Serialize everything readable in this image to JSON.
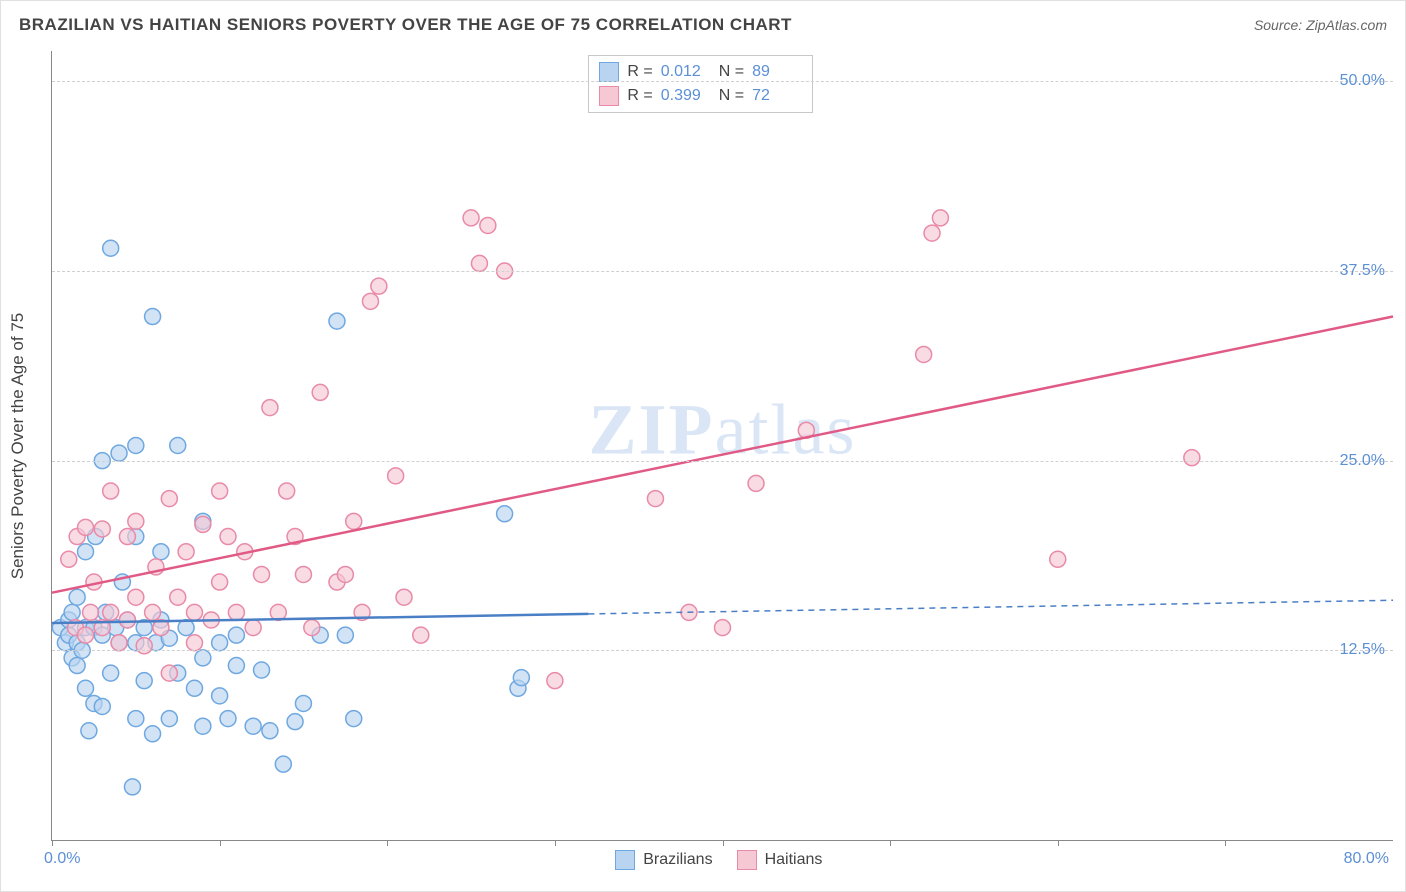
{
  "title": "BRAZILIAN VS HAITIAN SENIORS POVERTY OVER THE AGE OF 75 CORRELATION CHART",
  "source": "Source: ZipAtlas.com",
  "y_axis_label": "Seniors Poverty Over the Age of 75",
  "watermark_zip": "ZIP",
  "watermark_atlas": "atlas",
  "chart": {
    "type": "scatter",
    "xlim": [
      0,
      80
    ],
    "ylim": [
      0,
      52
    ],
    "x_min_label": "0.0%",
    "x_max_label": "80.0%",
    "x_ticks": [
      0,
      10,
      20,
      30,
      40,
      50,
      60,
      70
    ],
    "y_gridlines": [
      12.5,
      25.0,
      37.5,
      50.0
    ],
    "y_tick_labels": [
      "12.5%",
      "25.0%",
      "37.5%",
      "50.0%"
    ],
    "tick_label_color": "#5b8fd6",
    "grid_color": "#d0d0d0",
    "axis_color": "#888888",
    "background_color": "#ffffff",
    "marker_radius": 8,
    "marker_stroke_width": 1.5,
    "trend_line_width": 2.5,
    "label_fontsize": 17,
    "tick_fontsize": 16
  },
  "series": [
    {
      "name": "Brazilians",
      "fill": "#b8d4f0",
      "stroke": "#6fa8e0",
      "trend_color": "#4a7fc5",
      "trend_solid_xmax": 32,
      "R": "0.012",
      "N": "89",
      "trend": {
        "x1": 0,
        "y1": 14.3,
        "x2": 80,
        "y2": 15.8
      },
      "points": [
        [
          0.5,
          14
        ],
        [
          0.8,
          13
        ],
        [
          1,
          14.5
        ],
        [
          1,
          13.5
        ],
        [
          1.2,
          12
        ],
        [
          1.2,
          15
        ],
        [
          1.5,
          13
        ],
        [
          1.5,
          11.5
        ],
        [
          1.5,
          16
        ],
        [
          1.8,
          12.5
        ],
        [
          2,
          14
        ],
        [
          2,
          10
        ],
        [
          2,
          19
        ],
        [
          2.2,
          7.2
        ],
        [
          2.5,
          14
        ],
        [
          2.5,
          9
        ],
        [
          2.6,
          20
        ],
        [
          3,
          13.5
        ],
        [
          3,
          25
        ],
        [
          3,
          8.8
        ],
        [
          3.2,
          15
        ],
        [
          3.5,
          11
        ],
        [
          3.5,
          39
        ],
        [
          3.8,
          14
        ],
        [
          4,
          25.5
        ],
        [
          4,
          13
        ],
        [
          4.2,
          17
        ],
        [
          4.5,
          14.5
        ],
        [
          4.8,
          3.5
        ],
        [
          5,
          20
        ],
        [
          5,
          26
        ],
        [
          5,
          13
        ],
        [
          5,
          8
        ],
        [
          5.5,
          14
        ],
        [
          5.5,
          10.5
        ],
        [
          6,
          34.5
        ],
        [
          6,
          7
        ],
        [
          6.2,
          13
        ],
        [
          6.5,
          14.5
        ],
        [
          6.5,
          19
        ],
        [
          7,
          13.3
        ],
        [
          7,
          8
        ],
        [
          7.5,
          26
        ],
        [
          7.5,
          11
        ],
        [
          8,
          14
        ],
        [
          8.5,
          10
        ],
        [
          9,
          12
        ],
        [
          9,
          21
        ],
        [
          9,
          7.5
        ],
        [
          10,
          13
        ],
        [
          10,
          9.5
        ],
        [
          10.5,
          8
        ],
        [
          11,
          13.5
        ],
        [
          11,
          11.5
        ],
        [
          12,
          7.5
        ],
        [
          12.5,
          11.2
        ],
        [
          13,
          7.2
        ],
        [
          13.8,
          5
        ],
        [
          14.5,
          7.8
        ],
        [
          15,
          9
        ],
        [
          16,
          13.5
        ],
        [
          17,
          34.2
        ],
        [
          17.5,
          13.5
        ],
        [
          18,
          8
        ],
        [
          27,
          21.5
        ],
        [
          27.8,
          10
        ],
        [
          28,
          10.7
        ]
      ]
    },
    {
      "name": "Haitians",
      "fill": "#f5c8d4",
      "stroke": "#e88aa8",
      "trend_color": "#e05a85",
      "trend_solid_xmax": 80,
      "R": "0.399",
      "N": "72",
      "trend": {
        "x1": 0,
        "y1": 16.3,
        "x2": 80,
        "y2": 34.5
      },
      "points": [
        [
          1,
          18.5
        ],
        [
          1.4,
          14
        ],
        [
          1.5,
          20
        ],
        [
          2,
          20.6
        ],
        [
          2,
          13.5
        ],
        [
          2.3,
          15
        ],
        [
          2.5,
          17
        ],
        [
          3,
          14
        ],
        [
          3,
          20.5
        ],
        [
          3.5,
          15
        ],
        [
          3.5,
          23
        ],
        [
          4,
          13
        ],
        [
          4.5,
          14.5
        ],
        [
          4.5,
          20
        ],
        [
          5,
          16
        ],
        [
          5,
          21
        ],
        [
          5.5,
          12.8
        ],
        [
          6,
          15
        ],
        [
          6.2,
          18
        ],
        [
          6.5,
          14
        ],
        [
          7,
          22.5
        ],
        [
          7,
          11
        ],
        [
          7.5,
          16
        ],
        [
          8,
          19
        ],
        [
          8.5,
          15
        ],
        [
          8.5,
          13
        ],
        [
          9,
          20.8
        ],
        [
          9.5,
          14.5
        ],
        [
          10,
          17
        ],
        [
          10,
          23
        ],
        [
          10.5,
          20
        ],
        [
          11,
          15
        ],
        [
          11.5,
          19
        ],
        [
          12,
          14
        ],
        [
          12.5,
          17.5
        ],
        [
          13,
          28.5
        ],
        [
          13.5,
          15
        ],
        [
          14,
          23
        ],
        [
          14.5,
          20
        ],
        [
          15,
          17.5
        ],
        [
          15.5,
          14
        ],
        [
          16,
          29.5
        ],
        [
          17,
          17
        ],
        [
          17.5,
          17.5
        ],
        [
          18,
          21
        ],
        [
          18.5,
          15
        ],
        [
          19,
          35.5
        ],
        [
          19.5,
          36.5
        ],
        [
          20.5,
          24
        ],
        [
          21,
          16
        ],
        [
          22,
          13.5
        ],
        [
          25,
          41
        ],
        [
          25.5,
          38
        ],
        [
          26,
          40.5
        ],
        [
          27,
          37.5
        ],
        [
          30,
          10.5
        ],
        [
          36,
          22.5
        ],
        [
          38,
          15
        ],
        [
          40,
          14
        ],
        [
          42,
          23.5
        ],
        [
          45,
          27
        ],
        [
          52,
          32
        ],
        [
          52.5,
          40
        ],
        [
          53,
          41
        ],
        [
          60,
          18.5
        ],
        [
          68,
          25.2
        ]
      ]
    }
  ],
  "legend_R_label": "R =",
  "legend_N_label": "N ="
}
